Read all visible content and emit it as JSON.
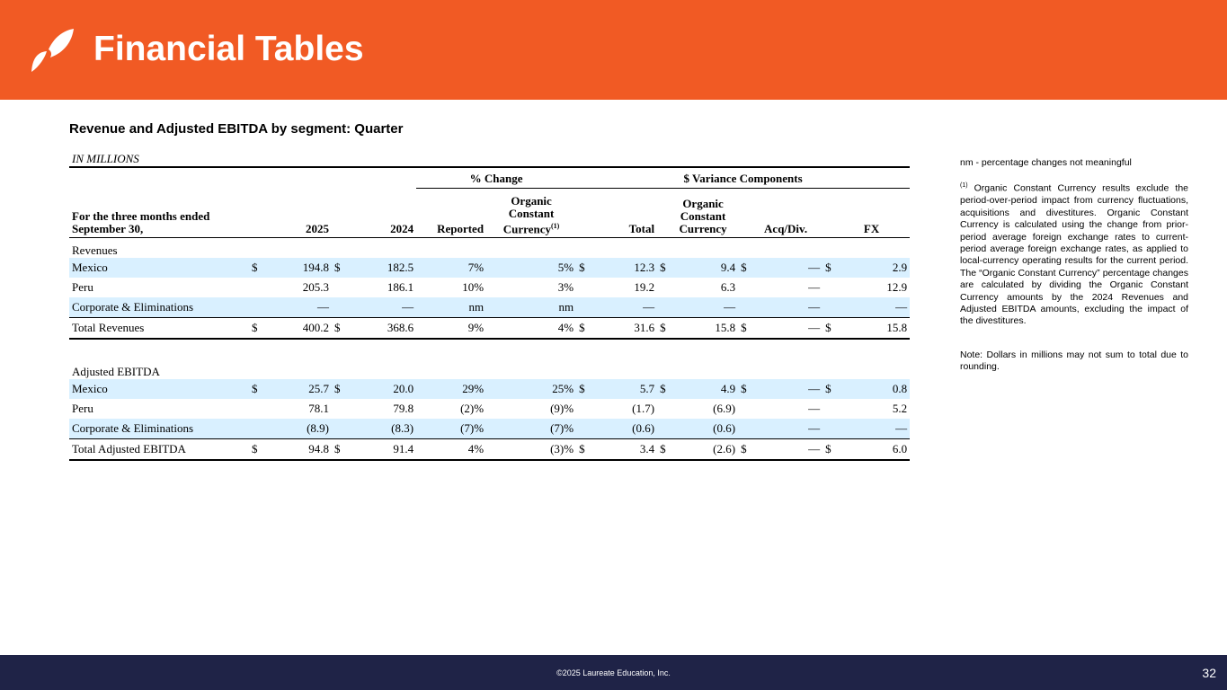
{
  "header": {
    "title": "Financial Tables"
  },
  "section_title": "Revenue and Adjusted EBITDA by segment: Quarter",
  "units": "IN MILLIONS",
  "table": {
    "group_headers": {
      "pct_change": "% Change",
      "variance": "$ Variance Components"
    },
    "columns": {
      "period": "For the three months ended September 30,",
      "y2025": "2025",
      "y2024": "2024",
      "reported": "Reported",
      "occ_line1": "Organic",
      "occ_line2": "Constant",
      "occ_line3": "Currency",
      "occ_sup": "(1)",
      "total": "Total",
      "var_occ_line1": "Organic",
      "var_occ_line2": "Constant",
      "var_occ_line3": "Currency",
      "acq": "Acq/Div.",
      "fx": "FX"
    },
    "dollar": "$",
    "revenues": {
      "label": "Revenues",
      "rows": [
        {
          "name": "Mexico",
          "v2025": "194.8",
          "v2024": "182.5",
          "reported": "7%",
          "occ": "5%",
          "total": "12.3",
          "var_occ": "9.4",
          "acq": "—",
          "fx": "2.9"
        },
        {
          "name": "Peru",
          "v2025": "205.3",
          "v2024": "186.1",
          "reported": "10%",
          "occ": "3%",
          "total": "19.2",
          "var_occ": "6.3",
          "acq": "—",
          "fx": "12.9"
        },
        {
          "name": "Corporate & Eliminations",
          "v2025": "—",
          "v2024": "—",
          "reported": "nm",
          "occ": "nm",
          "total": "—",
          "var_occ": "—",
          "acq": "—",
          "fx": "—"
        }
      ],
      "total": {
        "name": "Total Revenues",
        "v2025": "400.2",
        "v2024": "368.6",
        "reported": "9%",
        "occ": "4%",
        "total": "31.6",
        "var_occ": "15.8",
        "acq": "—",
        "fx": "15.8"
      }
    },
    "ebitda": {
      "label": "Adjusted EBITDA",
      "rows": [
        {
          "name": "Mexico",
          "v2025": "25.7",
          "v2024": "20.0",
          "reported": "29%",
          "occ": "25%",
          "total": "5.7",
          "var_occ": "4.9",
          "acq": "—",
          "fx": "0.8"
        },
        {
          "name": "Peru",
          "v2025": "78.1",
          "v2024": "79.8",
          "reported": "(2)%",
          "occ": "(9)%",
          "total": "(1.7)",
          "var_occ": "(6.9)",
          "acq": "—",
          "fx": "5.2"
        },
        {
          "name": "Corporate & Eliminations",
          "v2025": "(8.9)",
          "v2024": "(8.3)",
          "reported": "(7)%",
          "occ": "(7)%",
          "total": "(0.6)",
          "var_occ": "(0.6)",
          "acq": "—",
          "fx": "—"
        }
      ],
      "total": {
        "name": "Total Adjusted EBITDA",
        "v2025": "94.8",
        "v2024": "91.4",
        "reported": "4%",
        "occ": "(3)%",
        "total": "3.4",
        "var_occ": "(2.6)",
        "acq": "—",
        "fx": "6.0"
      }
    }
  },
  "notes": {
    "nm": "nm - percentage changes not meaningful",
    "footnote_marker": "(1)",
    "footnote": "Organic Constant Currency results exclude the period-over-period impact from currency fluctuations, acquisitions and divestitures. Organic Constant Currency is calculated using the change from prior-period average foreign exchange rates to current-period average foreign exchange rates, as applied to local-currency operating results for the current period. The “Organic Constant Currency” percentage changes are calculated by dividing the Organic Constant Currency amounts by the 2024 Revenues and Adjusted EBITDA amounts, excluding the impact of the divestitures.",
    "dollars_note": "Note:  Dollars in millions may not sum to total due to rounding."
  },
  "footer": {
    "copyright": "©2025 Laureate Education, Inc.",
    "page": "32"
  },
  "colors": {
    "brand_orange": "#F15A24",
    "navy": "#1F2347",
    "row_shade": "#D9F0FF"
  }
}
